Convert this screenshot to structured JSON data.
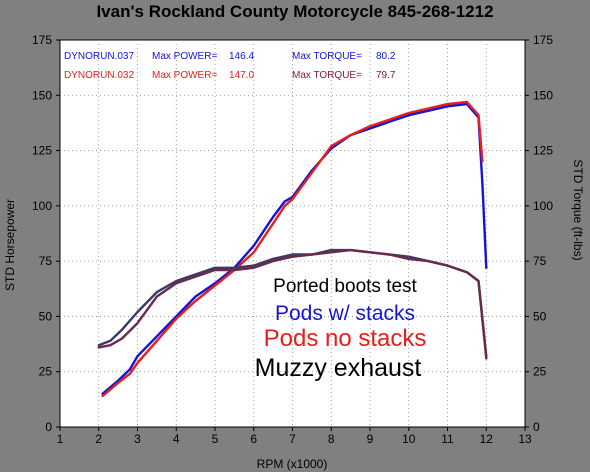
{
  "chart_data": {
    "type": "line",
    "title": "Ivan's Rockland County Motorcycle  845-268-1212",
    "xlabel": "RPM (x1000)",
    "ylabel": "STD Horsepower",
    "y2label": "STD Torque (ft-lbs)",
    "xlim": [
      1,
      13
    ],
    "ylim": [
      0,
      175
    ],
    "y2lim": [
      0,
      175
    ],
    "x_ticks": [
      "1",
      "2",
      "3",
      "4",
      "5",
      "6",
      "7",
      "8",
      "9",
      "10",
      "11",
      "12",
      "13"
    ],
    "y_ticks": [
      "0",
      "25",
      "50",
      "75",
      "100",
      "125",
      "150",
      "175"
    ],
    "grid": true,
    "colors": {
      "run037": "#1414d2",
      "run032": "#e61e1e",
      "torque_overlap": "#6a2a5a"
    },
    "legend": [
      {
        "run": "DYNORUN.037",
        "power_label": "Max POWER=",
        "power": "146.4",
        "torque_label": "Max TORQUE=",
        "torque": "80.2",
        "color": "#1414d2"
      },
      {
        "run": "DYNORUN.032",
        "power_label": "Max POWER=",
        "power": "147.0",
        "torque_label": "Max TORQUE=",
        "torque": "79.7",
        "color": "#e61e1e"
      }
    ],
    "annotations": [
      "Ported boots test",
      "Pods w/ stacks",
      "Pods no stacks",
      "Muzzy exhaust"
    ],
    "series": [
      {
        "name": "DYNORUN.037",
        "color": "#1414d2",
        "measure": "power",
        "x": [
          2.1,
          2.3,
          2.5,
          2.8,
          3.0,
          3.5,
          4.0,
          4.5,
          5.0,
          5.5,
          6.0,
          6.5,
          6.8,
          7.0,
          7.5,
          8.0,
          8.5,
          9.0,
          9.5,
          10.0,
          10.5,
          11.0,
          11.5,
          11.8,
          11.9,
          12.0
        ],
        "y": [
          15,
          18,
          21,
          26,
          32,
          41,
          50,
          59,
          65,
          72,
          82,
          95,
          102,
          104,
          116,
          126,
          132,
          135,
          138,
          141,
          143,
          145,
          146,
          140,
          110,
          72
        ]
      },
      {
        "name": "DYNORUN.032",
        "color": "#e61e1e",
        "measure": "power",
        "x": [
          2.1,
          2.3,
          2.5,
          2.8,
          3.0,
          3.5,
          4.0,
          4.5,
          5.0,
          5.5,
          6.0,
          6.5,
          6.8,
          7.0,
          7.5,
          8.0,
          8.5,
          9.0,
          9.5,
          10.0,
          10.5,
          11.0,
          11.5,
          11.8,
          11.9
        ],
        "y": [
          14,
          17,
          20,
          24,
          29,
          39,
          49,
          57,
          64,
          71,
          79,
          92,
          100,
          103,
          115,
          127,
          132,
          136,
          139,
          142,
          144,
          146,
          147,
          141,
          120
        ]
      },
      {
        "name": "DYNORUN.037",
        "color": "#1414d2",
        "measure": "torque",
        "x": [
          2.0,
          2.3,
          2.6,
          3.0,
          3.5,
          4.0,
          4.5,
          5.0,
          5.5,
          6.0,
          6.5,
          7.0,
          7.5,
          8.0,
          8.5,
          9.0,
          9.5,
          10.0,
          10.5,
          11.0,
          11.5,
          11.8,
          12.0
        ],
        "y": [
          37,
          39,
          44,
          52,
          61,
          66,
          69,
          72,
          72,
          73,
          76,
          78,
          78,
          80,
          80,
          79,
          78,
          77,
          75,
          73,
          70,
          66,
          31
        ]
      },
      {
        "name": "DYNORUN.032",
        "color": "#e61e1e",
        "measure": "torque",
        "x": [
          2.0,
          2.3,
          2.6,
          3.0,
          3.5,
          4.0,
          4.5,
          5.0,
          5.5,
          6.0,
          6.5,
          7.0,
          7.5,
          8.0,
          8.5,
          9.0,
          9.5,
          10.0,
          10.5,
          11.0,
          11.5,
          11.8,
          12.0
        ],
        "y": [
          36,
          37,
          40,
          47,
          59,
          65,
          68,
          71,
          71,
          72,
          75,
          77,
          78,
          79,
          80,
          79,
          78,
          76,
          75,
          73,
          70,
          66,
          32
        ]
      }
    ]
  }
}
